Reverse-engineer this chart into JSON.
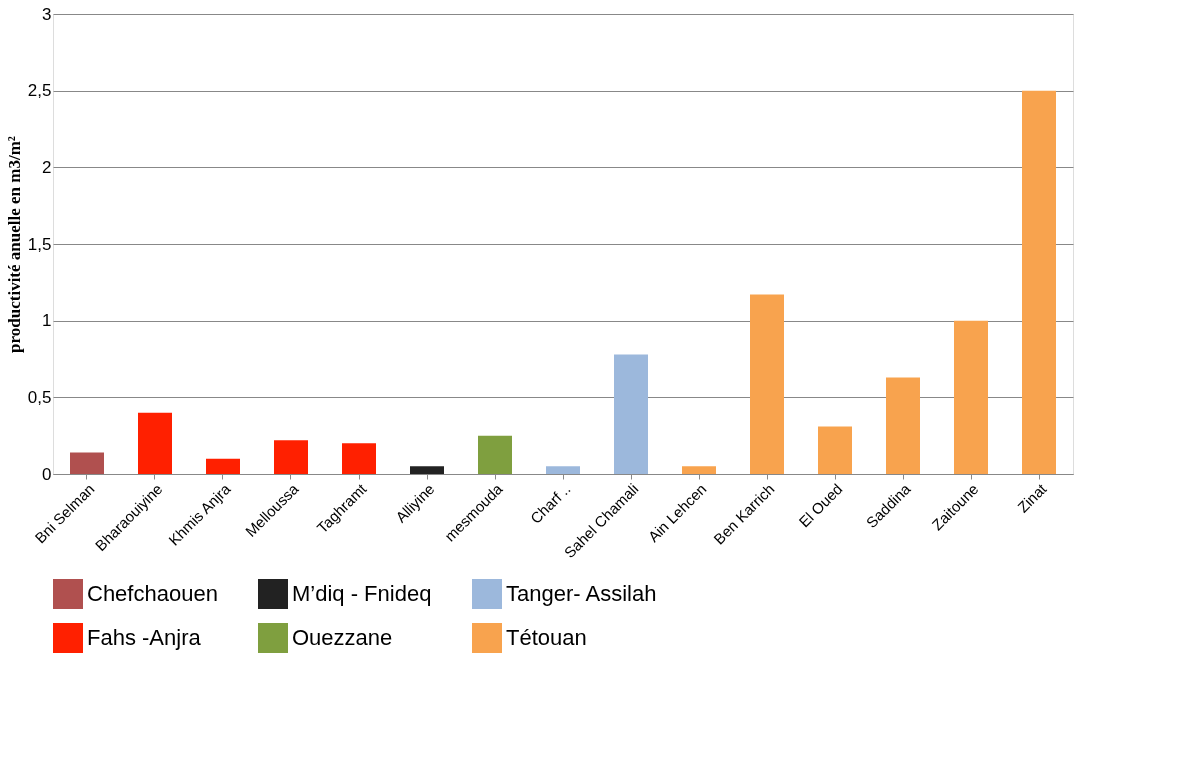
{
  "chart_data": {
    "type": "bar",
    "ylabel": "productivité anuelle en m3/m²",
    "categories": [
      "Bni Selman",
      "Bharaouiyine",
      "Khmis Anjra",
      "Melloussa",
      "Taghramt",
      "Alliyine",
      "mesmouda",
      "Charf ..",
      "Sahel Chamali",
      "Ain Lehcen",
      "Ben Karrich",
      "El Oued",
      "Saddina",
      "Zaitoune",
      "Zinat"
    ],
    "series": [
      {
        "name": "Chefchaouen",
        "color": "#b0504f",
        "values": [
          0.14,
          null,
          null,
          null,
          null,
          null,
          null,
          null,
          null,
          null,
          null,
          null,
          null,
          null,
          null
        ]
      },
      {
        "name": "M’diq - Fnideq",
        "color": "#222222",
        "values": [
          null,
          null,
          null,
          null,
          null,
          0.05,
          null,
          null,
          null,
          null,
          null,
          null,
          null,
          null,
          null
        ]
      },
      {
        "name": "Tanger- Assilah",
        "color": "#9cb8dc",
        "values": [
          null,
          null,
          null,
          null,
          null,
          null,
          null,
          0.05,
          0.78,
          null,
          null,
          null,
          null,
          null,
          null
        ]
      },
      {
        "name": "Fahs -Anjra",
        "color": "#ff2000",
        "values": [
          null,
          0.4,
          0.1,
          0.22,
          0.2,
          null,
          null,
          null,
          null,
          null,
          null,
          null,
          null,
          null,
          null
        ]
      },
      {
        "name": "Ouezzane",
        "color": "#7f9f3f",
        "values": [
          null,
          null,
          null,
          null,
          null,
          null,
          0.25,
          null,
          null,
          null,
          null,
          null,
          null,
          null,
          null
        ]
      },
      {
        "name": "Tétouan",
        "color": "#f8a34e",
        "values": [
          null,
          null,
          null,
          null,
          null,
          null,
          null,
          null,
          null,
          0.05,
          1.17,
          0.31,
          0.63,
          1.0,
          2.5
        ]
      }
    ],
    "ylim": [
      0,
      3
    ],
    "yticks": [
      0,
      {
        "value": 0.5,
        "label": "0,5"
      },
      1,
      {
        "value": 1.5,
        "label": "1,5"
      },
      2,
      {
        "value": 2.5,
        "label": "2,5"
      },
      3
    ],
    "grid": "y",
    "legend": "bottom"
  }
}
